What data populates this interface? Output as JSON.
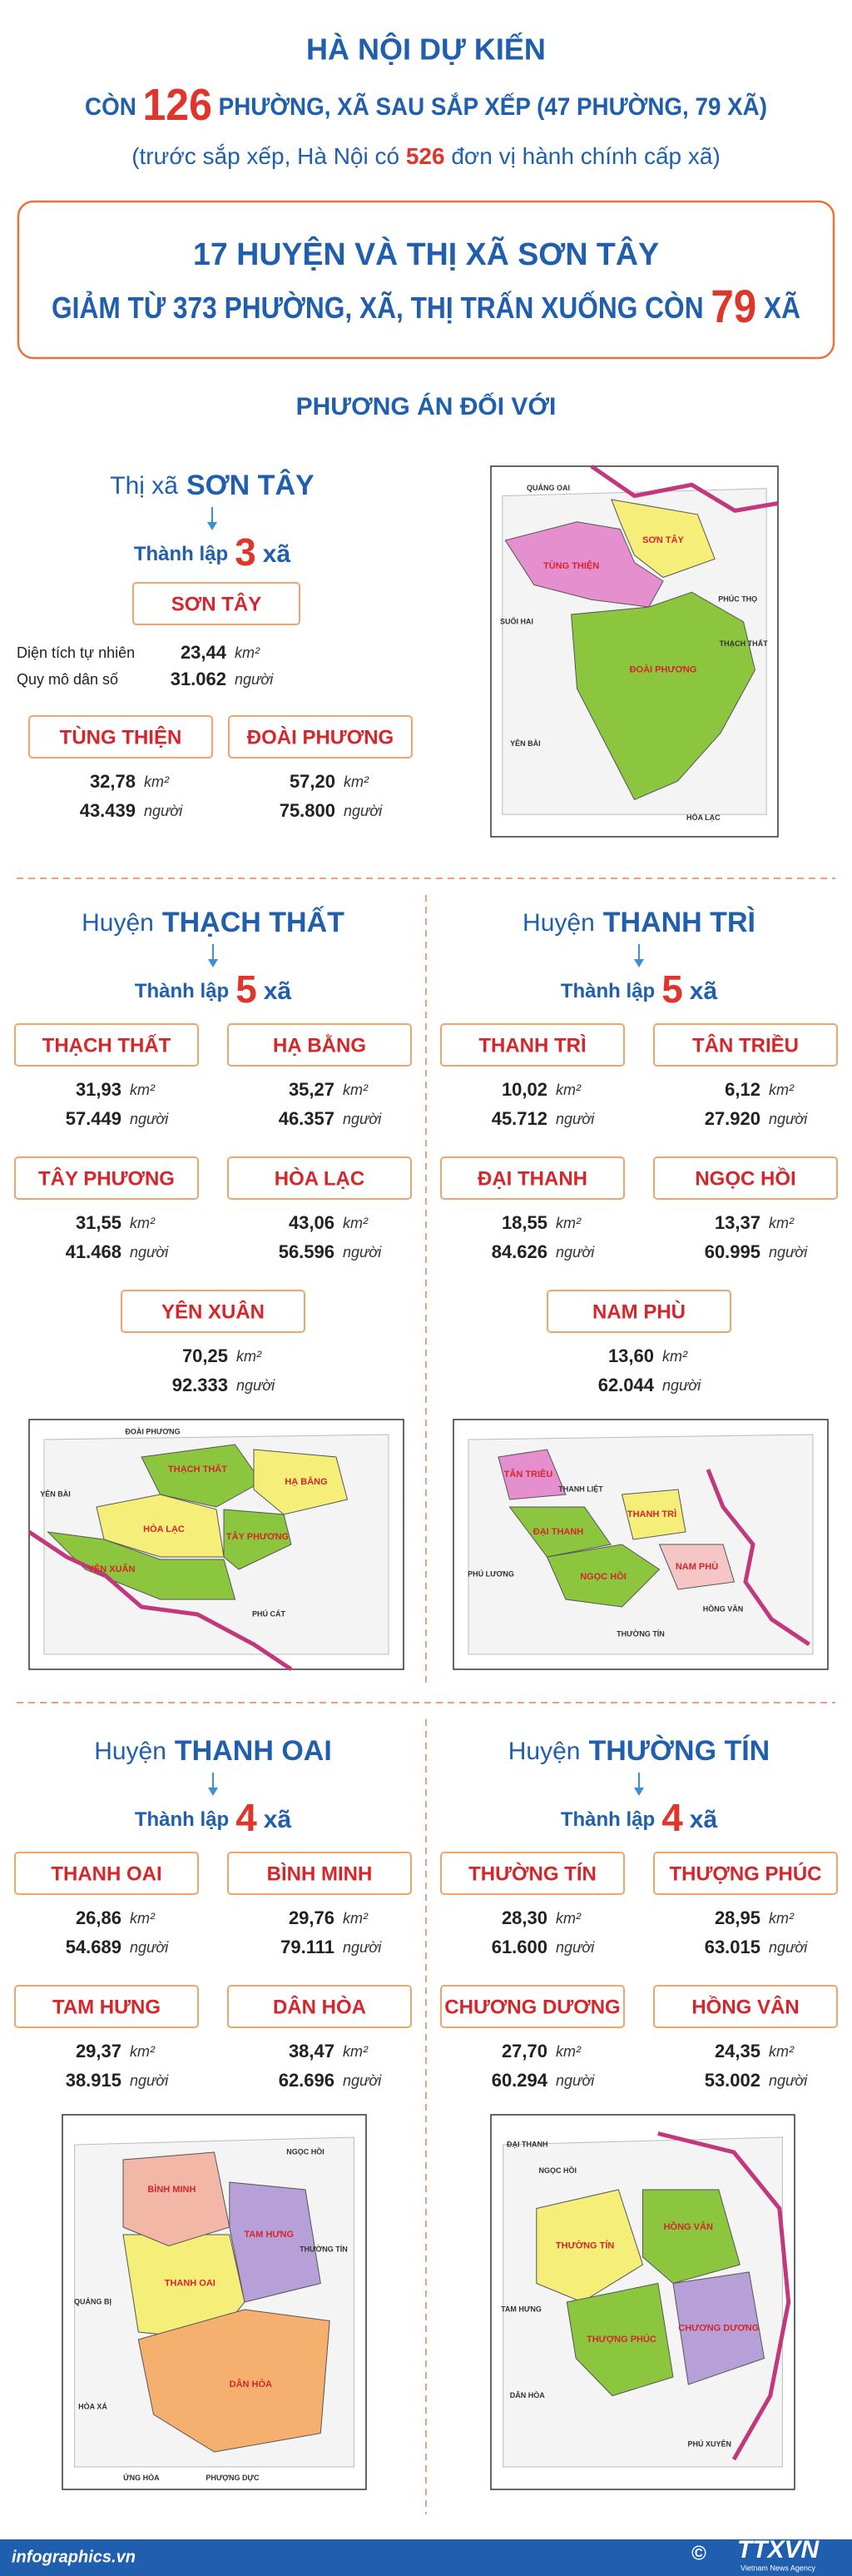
{
  "header": {
    "line1": "HÀ NỘI DỰ KIẾN",
    "line2": [
      "CÒN ",
      "126",
      " PHƯỜNG, XÃ SAU SẮP XẾP (47 PHƯỜNG, 79 XÃ)"
    ],
    "line3": [
      "(trước sắp xếp, Hà Nội có ",
      "526",
      " đơn vị hành chính cấp xã)"
    ]
  },
  "summary": {
    "line1": "17 HUYỆN VÀ THỊ XÃ SƠN TÂY",
    "line2": [
      "GIẢM TỪ 373 PHƯỜNG, XÃ, THỊ TRẤN XUỐNG CÒN ",
      "79",
      " XÃ"
    ]
  },
  "section_title": "PHƯƠNG ÁN ĐỐI VỚI",
  "labels": {
    "established": "Thành lập",
    "commune_word": "xã",
    "area_unit": "km²",
    "population_unit": "người",
    "area_label": "Diện tích tự nhiên",
    "population_label": "Quy mô dân số"
  },
  "districts": [
    {
      "prefix": "Thị xã",
      "name": "SƠN TÂY",
      "count": 3,
      "communes": [
        {
          "name": "SƠN TÂY",
          "area": "23,44",
          "population": "31.062"
        },
        {
          "name": "TÙNG THIỆN",
          "area": "32,78",
          "population": "43.439"
        },
        {
          "name": "ĐOÀI PHƯƠNG",
          "area": "57,20",
          "population": "75.800"
        }
      ],
      "map_labels": [
        "SƠN TÂY",
        "TÙNG THIỆN",
        "ĐOÀI PHƯƠNG",
        "QUẢNG OAI",
        "SUỐI HAI",
        "PHÚC THỌ",
        "YÊN BÀI",
        "HÒA LẠC",
        "THẠCH THẤT"
      ]
    },
    {
      "prefix": "Huyện",
      "name": "THẠCH THẤT",
      "count": 5,
      "communes": [
        {
          "name": "THẠCH THẤT",
          "area": "31,93",
          "population": "57.449"
        },
        {
          "name": "HẠ BẰNG",
          "area": "35,27",
          "population": "46.357"
        },
        {
          "name": "TÂY PHƯƠNG",
          "area": "31,55",
          "population": "41.468"
        },
        {
          "name": "HÒA LẠC",
          "area": "43,06",
          "population": "56.596"
        },
        {
          "name": "YÊN XUÂN",
          "area": "70,25",
          "population": "92.333"
        }
      ],
      "map_labels": [
        "THẠCH THẤT",
        "HẠ BẰNG",
        "TÂY PHƯƠNG",
        "HÒA LẠC",
        "YÊN XUÂN",
        "ĐOÀI PHƯƠNG",
        "YÊN BÀI",
        "PHÚ CÁT"
      ]
    },
    {
      "prefix": "Huyện",
      "name": "THANH TRÌ",
      "count": 5,
      "communes": [
        {
          "name": "THANH TRÌ",
          "area": "10,02",
          "population": "45.712"
        },
        {
          "name": "TÂN TRIỀU",
          "area": "6,12",
          "population": "27.920"
        },
        {
          "name": "ĐẠI THANH",
          "area": "18,55",
          "population": "84.626"
        },
        {
          "name": "NGỌC HỒI",
          "area": "13,37",
          "population": "60.995"
        },
        {
          "name": "NAM PHÙ",
          "area": "13,60",
          "population": "62.044"
        }
      ],
      "map_labels": [
        "THANH TRÌ",
        "TÂN TRIỀU",
        "ĐẠI THANH",
        "NGỌC HỒI",
        "NAM PHÙ",
        "THANH LIỆT",
        "HỒNG VÂN",
        "THƯỜNG TÍN",
        "PHÚ LƯƠNG"
      ]
    },
    {
      "prefix": "Huyện",
      "name": "THANH OAI",
      "count": 4,
      "communes": [
        {
          "name": "THANH OAI",
          "area": "26,86",
          "population": "54.689"
        },
        {
          "name": "BÌNH MINH",
          "area": "29,76",
          "population": "79.111"
        },
        {
          "name": "TAM HƯNG",
          "area": "29,37",
          "population": "38.915"
        },
        {
          "name": "DÂN HÒA",
          "area": "38,47",
          "population": "62.696"
        }
      ],
      "map_labels": [
        "THANH OAI",
        "BÌNH MINH",
        "TAM HƯNG",
        "DÂN HÒA",
        "QUẢNG BỊ",
        "HÒA XÁ",
        "ỨNG HÒA",
        "NGỌC HỒI",
        "THƯỜNG TÍN",
        "PHƯỢNG DỰC"
      ]
    },
    {
      "prefix": "Huyện",
      "name": "THƯỜNG TÍN",
      "count": 4,
      "communes": [
        {
          "name": "THƯỜNG TÍN",
          "area": "28,30",
          "population": "61.600"
        },
        {
          "name": "THƯỢNG PHÚC",
          "area": "28,95",
          "population": "63.015"
        },
        {
          "name": "CHƯƠNG DƯƠNG",
          "area": "27,70",
          "population": "60.294"
        },
        {
          "name": "HỒNG VÂN",
          "area": "24,35",
          "population": "53.002"
        }
      ],
      "map_labels": [
        "THƯỜNG TÍN",
        "THƯỢNG PHÚC",
        "CHƯƠNG DƯƠNG",
        "HỒNG VÂN",
        "ĐẠI THANH",
        "NGỌC HỒI",
        "PHÚ XUYÊN",
        "DÂN HÒA",
        "TAM HƯNG"
      ]
    }
  ],
  "footer": {
    "site": "infographics.vn",
    "copyright": "©",
    "agency": "TTXVN",
    "agency_name": "Vietnam News Agency"
  }
}
